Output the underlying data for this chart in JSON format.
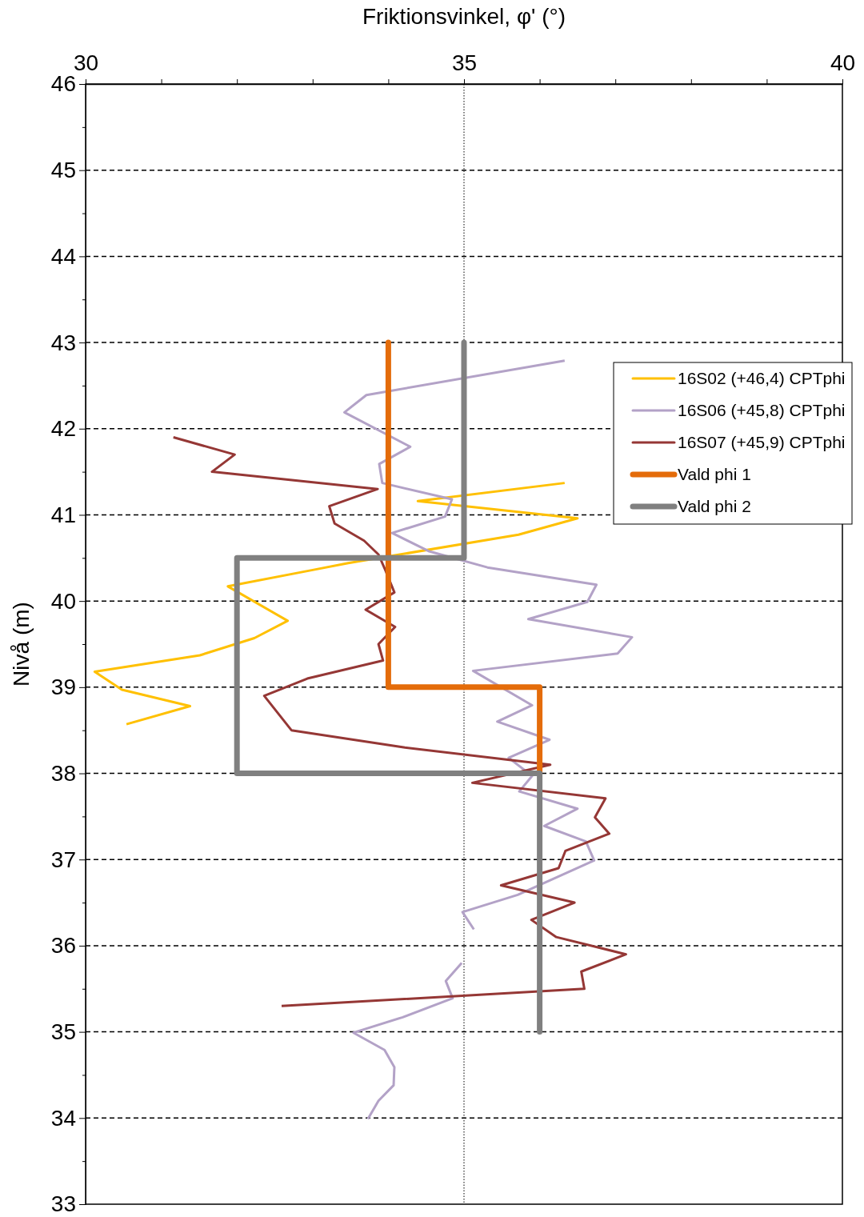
{
  "chart_data": {
    "type": "line",
    "xlabel": "Friktionsvinkel, φ' (°)",
    "ylabel": "Nivå (m)",
    "xlim": [
      30,
      40
    ],
    "xticks": [
      30,
      {
        "value": 31,
        "label": null
      },
      {
        "value": 32,
        "label": null
      },
      {
        "value": 33,
        "label": null
      },
      {
        "value": 34,
        "label": null
      },
      35,
      {
        "value": 36,
        "label": null
      },
      {
        "value": 37,
        "label": null
      },
      {
        "value": 38,
        "label": null
      },
      {
        "value": 39,
        "label": null
      },
      40
    ],
    "ylim": [
      33,
      46
    ],
    "yticks": [
      33,
      {
        "value": 33.5,
        "label": null
      },
      34,
      {
        "value": 34.5,
        "label": null
      },
      35,
      {
        "value": 35.5,
        "label": null
      },
      36,
      {
        "value": 36.5,
        "label": null
      },
      37,
      {
        "value": 37.5,
        "label": null
      },
      38,
      {
        "value": 38.5,
        "label": null
      },
      39,
      {
        "value": 39.5,
        "label": null
      },
      40,
      {
        "value": 40.5,
        "label": null
      },
      41,
      {
        "value": 41.5,
        "label": null
      },
      42,
      {
        "value": 42.5,
        "label": null
      },
      43,
      {
        "value": 43.5,
        "label": null
      },
      44,
      {
        "value": 44.5,
        "label": null
      },
      45,
      {
        "value": 45.5,
        "label": null
      },
      46
    ],
    "grid": "y",
    "legend": "right",
    "marker": "none",
    "line_style": "solid",
    "ref_lines": [
      {
        "axis": "x",
        "value": 35,
        "label": null,
        "color": "#000000",
        "line_style": "dotted"
      }
    ],
    "series": [
      {
        "name": "16S02 (+46,4) CPTphi",
        "color": "#ffc000",
        "x": [
          36.33,
          34.39,
          36.5,
          35.72,
          33.47,
          33.0,
          31.88,
          32.67,
          32.23,
          31.51,
          30.12,
          30.48,
          31.38,
          30.54
        ],
        "values": [
          41.37,
          41.16,
          40.96,
          40.77,
          40.44,
          40.36,
          40.17,
          39.77,
          39.57,
          39.37,
          39.18,
          38.97,
          38.78,
          38.57
        ]
      },
      {
        "name": "16S06 (+45,8) CPTphi",
        "color": "#b3a2c7",
        "x": [
          36.33,
          33.71,
          33.42,
          34.29,
          33.88,
          33.92,
          34.84,
          34.75,
          34.05,
          34.53,
          35.31,
          36.75,
          36.63,
          35.85,
          37.22,
          37.03,
          35.12,
          35.9,
          35.44,
          36.13,
          35.59,
          35.9,
          35.73,
          36.5,
          36.06,
          36.61,
          36.72,
          35.71,
          34.98,
          35.13,
          null,
          34.97,
          34.76,
          34.85,
          34.19,
          33.54,
          33.95,
          34.08,
          34.07,
          33.87,
          33.73
        ],
        "values": [
          42.79,
          42.39,
          42.19,
          41.79,
          41.59,
          41.37,
          41.18,
          40.98,
          40.79,
          40.58,
          40.39,
          40.19,
          39.99,
          39.79,
          39.58,
          39.39,
          39.19,
          38.79,
          38.6,
          38.39,
          38.18,
          37.97,
          37.79,
          37.59,
          37.39,
          37.21,
          36.99,
          36.59,
          36.39,
          36.19,
          null,
          35.8,
          35.59,
          35.39,
          35.17,
          34.99,
          34.79,
          34.59,
          34.38,
          34.2,
          33.99
        ]
      },
      {
        "name": "16S07 (+45,9) CPTphi",
        "color": "#953735",
        "x": [
          31.16,
          31.97,
          31.67,
          33.86,
          33.22,
          33.29,
          33.68,
          33.87,
          33.96,
          34.08,
          33.7,
          34.09,
          33.87,
          33.93,
          32.93,
          32.36,
          32.72,
          34.22,
          36.14,
          35.11,
          36.87,
          36.73,
          36.92,
          36.34,
          36.25,
          35.49,
          36.46,
          35.89,
          36.22,
          37.14,
          36.55,
          36.59,
          32.59
        ],
        "values": [
          41.9,
          41.7,
          41.5,
          41.3,
          41.1,
          40.9,
          40.7,
          40.54,
          40.36,
          40.1,
          39.9,
          39.7,
          39.5,
          39.31,
          39.1,
          38.9,
          38.5,
          38.3,
          38.1,
          37.89,
          37.71,
          37.49,
          37.3,
          37.1,
          36.9,
          36.7,
          36.5,
          36.3,
          36.1,
          35.9,
          35.7,
          35.5,
          35.3
        ]
      },
      {
        "name": "Vald phi 1",
        "color": "#e46c0a",
        "x": [
          34,
          34,
          36,
          36
        ],
        "values": [
          43,
          39,
          39,
          38
        ]
      },
      {
        "name": "Vald phi 2",
        "color": "#808080",
        "x": [
          35,
          35,
          32,
          32,
          36,
          36
        ],
        "values": [
          43,
          40.5,
          40.5,
          38,
          38,
          35
        ]
      }
    ]
  }
}
